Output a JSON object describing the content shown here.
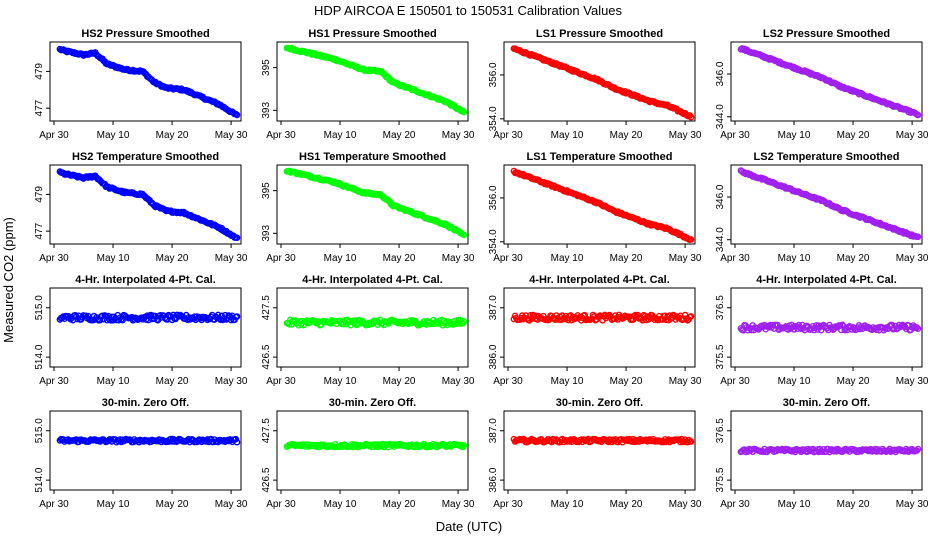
{
  "title": "HDP    AIRCOA E    150501 to 150531    Calibration Values",
  "ylabel": "Measured CO2 (ppm)",
  "xlabel": "Date (UTC)",
  "colors": {
    "HS2": "#0000ff",
    "HS1": "#00ff00",
    "LS1": "#ff0000",
    "LS2": "#a020f0"
  },
  "chart_data": [
    {
      "type": "scatter",
      "row": 0,
      "col": 0,
      "color_key": "HS2",
      "title": "HS2 Pressure Smoothed",
      "ylim": [
        476.3,
        480.6
      ],
      "yticks": [
        477,
        479
      ],
      "ytick_labels": [
        "477",
        "479"
      ],
      "x": [
        "Apr 30",
        "May 2",
        "May 5",
        "May 7",
        "May 9",
        "May 12",
        "May 15",
        "May 17",
        "May 19",
        "May 22",
        "May 25",
        "May 28",
        "May 31"
      ],
      "y": [
        480.3,
        480.1,
        479.9,
        480.0,
        479.4,
        479.1,
        479.0,
        478.4,
        478.1,
        478.0,
        477.6,
        477.2,
        476.6
      ]
    },
    {
      "type": "scatter",
      "row": 0,
      "col": 1,
      "color_key": "HS1",
      "title": "HS1 Pressure Smoothed",
      "ylim": [
        392.5,
        396.2
      ],
      "yticks": [
        393,
        395
      ],
      "ytick_labels": [
        "393",
        "395"
      ],
      "x": [
        "Apr 30",
        "May 3",
        "May 6",
        "May 9",
        "May 12",
        "May 14",
        "May 17",
        "May 19",
        "May 22",
        "May 25",
        "May 28",
        "May 31"
      ],
      "y": [
        396.0,
        395.8,
        395.6,
        395.4,
        395.1,
        394.9,
        394.8,
        394.3,
        394.0,
        393.7,
        393.4,
        392.9
      ]
    },
    {
      "type": "scatter",
      "row": 0,
      "col": 2,
      "color_key": "LS1",
      "title": "LS1 Pressure Smoothed",
      "ylim": [
        353.9,
        357.5
      ],
      "yticks": [
        354.0,
        356.0
      ],
      "ytick_labels": [
        "354.0",
        "356.0"
      ],
      "x": [
        "Apr 30",
        "May 3",
        "May 6",
        "May 9",
        "May 12",
        "May 15",
        "May 18",
        "May 21",
        "May 24",
        "May 27",
        "May 31"
      ],
      "y": [
        357.3,
        357.0,
        356.7,
        356.4,
        356.1,
        355.8,
        355.4,
        355.1,
        354.8,
        354.6,
        354.1
      ]
    },
    {
      "type": "scatter",
      "row": 0,
      "col": 3,
      "color_key": "LS2",
      "title": "LS2 Pressure Smoothed",
      "ylim": [
        343.8,
        347.5
      ],
      "yticks": [
        344.0,
        346.0
      ],
      "ytick_labels": [
        "344.0",
        "346.0"
      ],
      "x": [
        "Apr 30",
        "May 3",
        "May 6",
        "May 9",
        "May 12",
        "May 15",
        "May 18",
        "May 21",
        "May 24",
        "May 27",
        "May 31"
      ],
      "y": [
        347.3,
        347.0,
        346.7,
        346.4,
        346.1,
        345.8,
        345.4,
        345.1,
        344.8,
        344.5,
        344.1
      ]
    },
    {
      "type": "scatter",
      "row": 1,
      "col": 0,
      "color_key": "HS2",
      "title": "HS2 Temperature Smoothed",
      "ylim": [
        476.3,
        480.6
      ],
      "yticks": [
        477,
        479
      ],
      "ytick_labels": [
        "477",
        "479"
      ],
      "x": [
        "Apr 30",
        "May 2",
        "May 5",
        "May 7",
        "May 9",
        "May 12",
        "May 15",
        "May 17",
        "May 19",
        "May 22",
        "May 25",
        "May 28",
        "May 31"
      ],
      "y": [
        480.3,
        480.1,
        479.9,
        480.0,
        479.4,
        479.1,
        479.0,
        478.4,
        478.1,
        478.0,
        477.6,
        477.2,
        476.6
      ]
    },
    {
      "type": "scatter",
      "row": 1,
      "col": 1,
      "color_key": "HS1",
      "title": "HS1 Temperature Smoothed",
      "ylim": [
        392.5,
        396.2
      ],
      "yticks": [
        393,
        395
      ],
      "ytick_labels": [
        "393",
        "395"
      ],
      "x": [
        "Apr 30",
        "May 3",
        "May 6",
        "May 9",
        "May 12",
        "May 14",
        "May 17",
        "May 19",
        "May 22",
        "May 25",
        "May 28",
        "May 31"
      ],
      "y": [
        396.0,
        395.8,
        395.6,
        395.4,
        395.1,
        394.9,
        394.8,
        394.3,
        394.0,
        393.7,
        393.4,
        392.9
      ]
    },
    {
      "type": "scatter",
      "row": 1,
      "col": 2,
      "color_key": "LS1",
      "title": "LS1 Temperature Smoothed",
      "ylim": [
        353.9,
        357.5
      ],
      "yticks": [
        354.0,
        356.0
      ],
      "ytick_labels": [
        "354.0",
        "356.0"
      ],
      "x": [
        "Apr 30",
        "May 3",
        "May 6",
        "May 9",
        "May 12",
        "May 15",
        "May 18",
        "May 21",
        "May 24",
        "May 27",
        "May 31"
      ],
      "y": [
        357.3,
        357.0,
        356.7,
        356.4,
        356.1,
        355.8,
        355.4,
        355.1,
        354.8,
        354.6,
        354.1
      ]
    },
    {
      "type": "scatter",
      "row": 1,
      "col": 3,
      "color_key": "LS2",
      "title": "LS2 Temperature Smoothed",
      "ylim": [
        343.8,
        347.5
      ],
      "yticks": [
        344.0,
        346.0
      ],
      "ytick_labels": [
        "344.0",
        "346.0"
      ],
      "x": [
        "Apr 30",
        "May 3",
        "May 6",
        "May 9",
        "May 12",
        "May 15",
        "May 18",
        "May 21",
        "May 24",
        "May 27",
        "May 31"
      ],
      "y": [
        347.3,
        347.0,
        346.7,
        346.4,
        346.1,
        345.8,
        345.4,
        345.1,
        344.8,
        344.5,
        344.1
      ]
    },
    {
      "type": "scatter",
      "row": 2,
      "col": 0,
      "color_key": "HS2",
      "title": "4-Hr. Interpolated 4-Pt. Cal.",
      "ylim": [
        513.8,
        515.4
      ],
      "yticks": [
        514.0,
        515.0
      ],
      "ytick_labels": [
        "514.0",
        "515.0"
      ],
      "x": [
        "Apr 30",
        "May 5",
        "May 10",
        "May 15",
        "May 20",
        "May 25",
        "May 31"
      ],
      "y": [
        514.8,
        514.8,
        514.8,
        514.8,
        514.8,
        514.8,
        514.8
      ]
    },
    {
      "type": "scatter",
      "row": 2,
      "col": 1,
      "color_key": "HS1",
      "title": "4-Hr. Interpolated 4-Pt. Cal.",
      "ylim": [
        426.3,
        427.9
      ],
      "yticks": [
        426.5,
        427.5
      ],
      "ytick_labels": [
        "426.5",
        "427.5"
      ],
      "x": [
        "Apr 30",
        "May 5",
        "May 10",
        "May 15",
        "May 20",
        "May 25",
        "May 31"
      ],
      "y": [
        427.2,
        427.2,
        427.2,
        427.2,
        427.2,
        427.2,
        427.2
      ]
    },
    {
      "type": "scatter",
      "row": 2,
      "col": 2,
      "color_key": "LS1",
      "title": "4-Hr. Interpolated 4-Pt. Cal.",
      "ylim": [
        385.8,
        387.4
      ],
      "yticks": [
        386.0,
        387.0
      ],
      "ytick_labels": [
        "386.0",
        "387.0"
      ],
      "x": [
        "Apr 30",
        "May 5",
        "May 10",
        "May 15",
        "May 20",
        "May 25",
        "May 31"
      ],
      "y": [
        386.8,
        386.8,
        386.8,
        386.8,
        386.8,
        386.8,
        386.8
      ]
    },
    {
      "type": "scatter",
      "row": 2,
      "col": 3,
      "color_key": "LS2",
      "title": "4-Hr. Interpolated 4-Pt. Cal.",
      "ylim": [
        375.3,
        376.9
      ],
      "yticks": [
        375.5,
        376.5
      ],
      "ytick_labels": [
        "375.5",
        "376.5"
      ],
      "x": [
        "Apr 30",
        "May 5",
        "May 10",
        "May 15",
        "May 20",
        "May 25",
        "May 31"
      ],
      "y": [
        376.1,
        376.1,
        376.1,
        376.1,
        376.1,
        376.1,
        376.1
      ]
    },
    {
      "type": "scatter",
      "row": 3,
      "col": 0,
      "color_key": "HS2",
      "title": "30-min. Zero Off.",
      "ylim": [
        513.8,
        515.4
      ],
      "yticks": [
        514.0,
        515.0
      ],
      "ytick_labels": [
        "514.0",
        "515.0"
      ],
      "x": [
        "Apr 30",
        "May 5",
        "May 10",
        "May 15",
        "May 20",
        "May 25",
        "May 31"
      ],
      "y": [
        514.8,
        514.8,
        514.8,
        514.8,
        514.8,
        514.8,
        514.8
      ]
    },
    {
      "type": "scatter",
      "row": 3,
      "col": 1,
      "color_key": "HS1",
      "title": "30-min. Zero Off.",
      "ylim": [
        426.3,
        427.9
      ],
      "yticks": [
        426.5,
        427.5
      ],
      "ytick_labels": [
        "426.5",
        "427.5"
      ],
      "x": [
        "Apr 30",
        "May 5",
        "May 10",
        "May 15",
        "May 20",
        "May 25",
        "May 31"
      ],
      "y": [
        427.2,
        427.2,
        427.2,
        427.2,
        427.2,
        427.2,
        427.2
      ]
    },
    {
      "type": "scatter",
      "row": 3,
      "col": 2,
      "color_key": "LS1",
      "title": "30-min. Zero Off.",
      "ylim": [
        385.8,
        387.4
      ],
      "yticks": [
        386.0,
        387.0
      ],
      "ytick_labels": [
        "386.0",
        "387.0"
      ],
      "x": [
        "Apr 30",
        "May 5",
        "May 10",
        "May 15",
        "May 20",
        "May 25",
        "May 31"
      ],
      "y": [
        386.8,
        386.8,
        386.8,
        386.8,
        386.8,
        386.8,
        386.8
      ]
    },
    {
      "type": "scatter",
      "row": 3,
      "col": 3,
      "color_key": "LS2",
      "title": "30-min. Zero Off.",
      "ylim": [
        375.3,
        376.9
      ],
      "yticks": [
        375.5,
        376.5
      ],
      "ytick_labels": [
        "375.5",
        "376.5"
      ],
      "x": [
        "Apr 30",
        "May 5",
        "May 10",
        "May 15",
        "May 20",
        "May 25",
        "May 31"
      ],
      "y": [
        376.1,
        376.1,
        376.1,
        376.1,
        376.1,
        376.1,
        376.1
      ]
    }
  ],
  "x_axis": {
    "ticks": [
      "Apr 30",
      "May 10",
      "May 20",
      "May 30"
    ],
    "range": [
      "Apr 30",
      "May 31"
    ]
  }
}
